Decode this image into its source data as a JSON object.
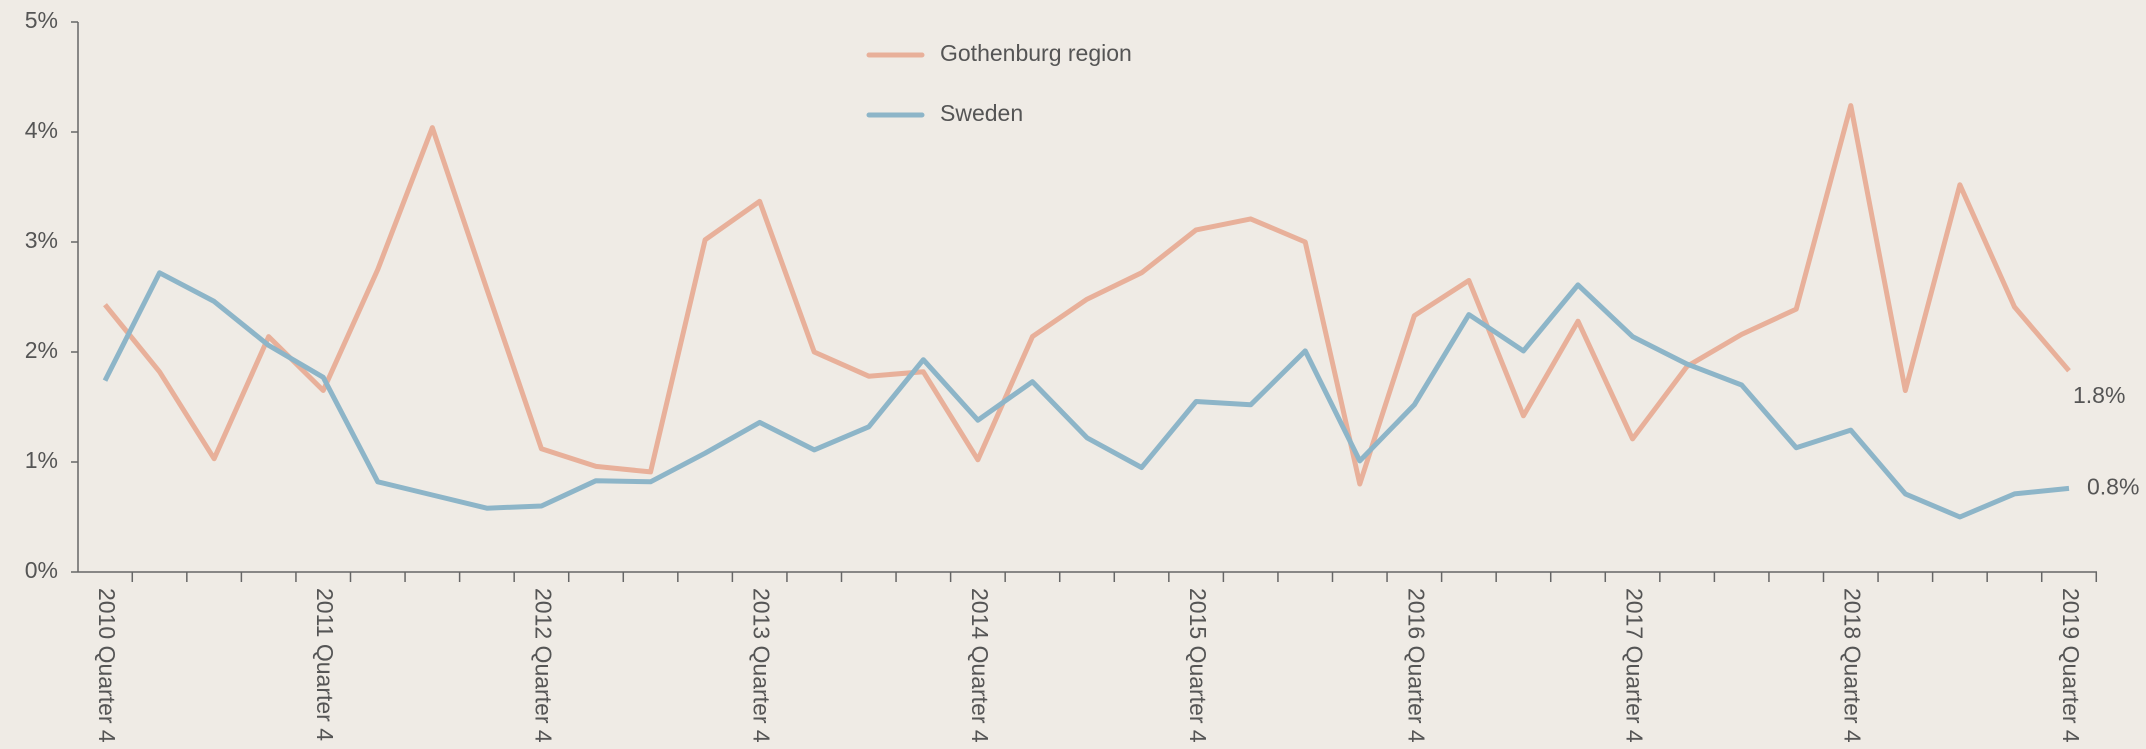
{
  "chart_data": {
    "type": "line",
    "categories": [
      "2010 Quarter 4",
      null,
      null,
      null,
      "2011 Quarter 4",
      null,
      null,
      null,
      "2012 Quarter 4",
      null,
      null,
      null,
      "2013 Quarter 4",
      null,
      null,
      null,
      "2014 Quarter 4",
      null,
      null,
      null,
      "2015 Quarter 4",
      null,
      null,
      null,
      "2016 Quarter 4",
      null,
      null,
      null,
      "2017 Quarter 4",
      null,
      null,
      null,
      "2018 Quarter 4",
      null,
      null,
      null,
      "2019 Quarter 4"
    ],
    "series": [
      {
        "name": "Gothenburg region",
        "color": "#e8b09a",
        "values": [
          2.43,
          1.82,
          1.03,
          2.14,
          1.65,
          2.75,
          4.04,
          2.57,
          1.12,
          0.96,
          0.91,
          3.02,
          3.37,
          2.0,
          1.78,
          1.82,
          1.02,
          2.14,
          2.48,
          2.72,
          3.11,
          3.21,
          3.0,
          0.8,
          2.33,
          2.65,
          1.42,
          2.28,
          1.21,
          1.87,
          2.16,
          2.39,
          4.24,
          1.65,
          3.52,
          2.41,
          1.83
        ],
        "value_labels": [
          null,
          null,
          null,
          null,
          null,
          null,
          null,
          null,
          null,
          null,
          null,
          null,
          null,
          null,
          null,
          null,
          null,
          null,
          null,
          null,
          null,
          null,
          null,
          null,
          null,
          null,
          null,
          null,
          null,
          null,
          null,
          null,
          null,
          null,
          null,
          null,
          "1.8%"
        ]
      },
      {
        "name": "Sweden",
        "color": "#8db5c8",
        "values": [
          1.74,
          2.72,
          2.46,
          2.06,
          1.77,
          0.82,
          0.7,
          0.58,
          0.6,
          0.83,
          0.82,
          1.08,
          1.36,
          1.11,
          1.32,
          1.93,
          1.38,
          1.73,
          1.22,
          0.95,
          1.55,
          1.52,
          2.01,
          1.01,
          1.52,
          2.34,
          2.01,
          2.61,
          2.14,
          1.89,
          1.7,
          1.13,
          1.29,
          0.71,
          0.5,
          0.71,
          0.76
        ],
        "value_labels": [
          null,
          null,
          null,
          null,
          null,
          null,
          null,
          null,
          null,
          null,
          null,
          null,
          null,
          null,
          null,
          null,
          null,
          null,
          null,
          null,
          null,
          null,
          null,
          null,
          null,
          null,
          null,
          null,
          null,
          null,
          null,
          null,
          null,
          null,
          null,
          null,
          "0.8%"
        ]
      }
    ],
    "ylim": [
      0,
      5
    ],
    "yticks": [
      {
        "value": 0,
        "label": "0%"
      },
      {
        "value": 1,
        "label": "1%"
      },
      {
        "value": 2,
        "label": "2%"
      },
      {
        "value": 3,
        "label": "3%"
      },
      {
        "value": 4,
        "label": "4%"
      },
      {
        "value": 5,
        "label": "5%"
      }
    ],
    "grid": false,
    "legend": "top"
  }
}
